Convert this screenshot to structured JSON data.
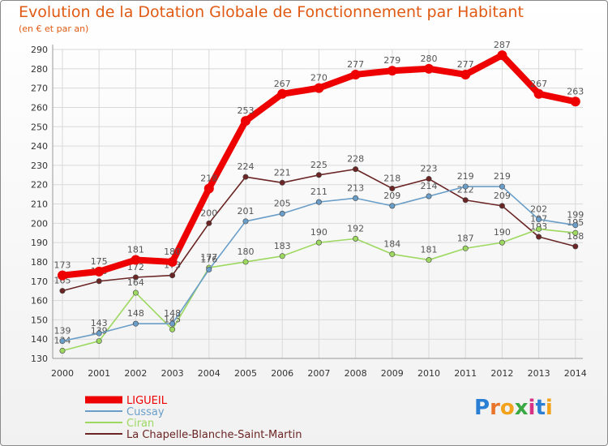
{
  "title": "Evolution de la Dotation Globale de Fonctionnement par Habitant",
  "subtitle": "(en € et par an)",
  "logo_text": "Proxiti",
  "colors": {
    "title": "#e05a14",
    "grid": "#d9d9d9",
    "axis": "#999999"
  },
  "chart_data": {
    "type": "line",
    "title": "Evolution de la Dotation Globale de Fonctionnement par Habitant",
    "subtitle": "(en € et par an)",
    "xlabel": "",
    "ylabel": "",
    "categories": [
      "2000",
      "2001",
      "2002",
      "2003",
      "2004",
      "2005",
      "2006",
      "2007",
      "2008",
      "2009",
      "2010",
      "2011",
      "2012",
      "2013",
      "2014"
    ],
    "y_ticks": [
      130,
      140,
      150,
      160,
      170,
      180,
      190,
      200,
      210,
      220,
      230,
      240,
      250,
      260,
      270,
      280,
      290
    ],
    "ylim": [
      130,
      290
    ],
    "grid": true,
    "legend_position": "bottom-left",
    "series": [
      {
        "name": "LIGUEIL",
        "color": "#ee0000",
        "values": [
          173,
          175,
          181,
          180,
          218,
          253,
          267,
          270,
          277,
          279,
          280,
          277,
          287,
          267,
          263
        ]
      },
      {
        "name": "Cussay",
        "color": "#6a9ec8",
        "values": [
          139,
          143,
          148,
          148,
          176,
          201,
          205,
          211,
          213,
          209,
          214,
          219,
          219,
          202,
          199
        ]
      },
      {
        "name": "Ciran",
        "color": "#9dd860",
        "values": [
          134,
          139,
          164,
          145,
          177,
          180,
          183,
          190,
          192,
          184,
          181,
          187,
          190,
          197,
          195
        ]
      },
      {
        "name": "La Chapelle-Blanche-Saint-Martin",
        "color": "#6b2525",
        "values": [
          165,
          170,
          172,
          173,
          200,
          224,
          221,
          225,
          228,
          218,
          223,
          212,
          209,
          193,
          188
        ]
      }
    ]
  }
}
